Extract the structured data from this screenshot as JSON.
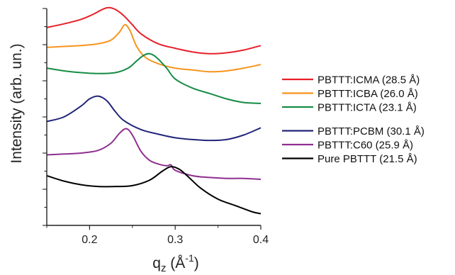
{
  "chart_data": {
    "type": "line",
    "title": "",
    "xlabel_main": "q",
    "xlabel_sub": "z",
    "xlabel_unit_open": " (Å",
    "xlabel_unit_sup": "-1",
    "xlabel_unit_close": ")",
    "ylabel": "Intensity (arb. un.)",
    "xlim": [
      0.15,
      0.4
    ],
    "ylim": [
      0,
      12
    ],
    "xticks": [
      {
        "value": 0.2,
        "label": "0.2"
      },
      {
        "value": 0.3,
        "label": "0.3"
      },
      {
        "value": 0.4,
        "label": "0.4"
      }
    ],
    "yticks_labeled": false,
    "grid": false,
    "legend_position": "right",
    "series": [
      {
        "name": "PBTTT:ICMA (28.5 Å)",
        "color": "#e8202a",
        "x": [
          0.15,
          0.17,
          0.19,
          0.205,
          0.215,
          0.222,
          0.23,
          0.24,
          0.25,
          0.26,
          0.28,
          0.3,
          0.32,
          0.34,
          0.36,
          0.38,
          0.4
        ],
        "y": [
          10.95,
          11.15,
          11.4,
          11.7,
          11.95,
          12.05,
          11.95,
          11.6,
          11.1,
          10.6,
          10.05,
          9.8,
          9.6,
          9.5,
          9.55,
          9.7,
          9.95
        ]
      },
      {
        "name": "PBTTT:ICBA (26.0 Å)",
        "color": "#f7941d",
        "x": [
          0.15,
          0.17,
          0.19,
          0.21,
          0.225,
          0.235,
          0.241,
          0.247,
          0.255,
          0.265,
          0.28,
          0.3,
          0.32,
          0.34,
          0.36,
          0.38,
          0.4
        ],
        "y": [
          9.85,
          9.9,
          9.95,
          10.05,
          10.25,
          10.7,
          11.1,
          10.8,
          9.9,
          9.3,
          8.95,
          8.7,
          8.6,
          8.5,
          8.55,
          8.7,
          8.9
        ]
      },
      {
        "name": "PBTTT:ICTA (23.1 Å)",
        "color": "#168c44",
        "x": [
          0.15,
          0.17,
          0.19,
          0.21,
          0.23,
          0.245,
          0.255,
          0.263,
          0.27,
          0.278,
          0.29,
          0.3,
          0.32,
          0.34,
          0.36,
          0.38,
          0.4
        ],
        "y": [
          8.7,
          8.55,
          8.45,
          8.4,
          8.45,
          8.7,
          9.1,
          9.4,
          9.5,
          9.3,
          8.7,
          8.1,
          7.6,
          7.3,
          7.0,
          6.8,
          6.75
        ]
      },
      {
        "name": "PBTTT:PCBM (30.1 Å)",
        "color": "#23257a",
        "x": [
          0.15,
          0.17,
          0.19,
          0.2,
          0.21,
          0.22,
          0.23,
          0.24,
          0.26,
          0.28,
          0.3,
          0.32,
          0.34,
          0.36,
          0.38,
          0.4
        ],
        "y": [
          5.75,
          6.0,
          6.6,
          7.0,
          7.15,
          6.9,
          6.3,
          5.8,
          5.3,
          5.05,
          4.85,
          4.75,
          4.7,
          4.75,
          5.0,
          5.4
        ]
      },
      {
        "name": "PBTTT:C60 (25.9 Å)",
        "color": "#8e2f8f",
        "x": [
          0.15,
          0.17,
          0.19,
          0.21,
          0.225,
          0.235,
          0.243,
          0.25,
          0.26,
          0.27,
          0.28,
          0.29,
          0.295,
          0.3,
          0.32,
          0.34,
          0.36,
          0.38,
          0.4
        ],
        "y": [
          3.9,
          3.95,
          4.0,
          4.15,
          4.55,
          5.1,
          5.35,
          5.0,
          4.1,
          3.6,
          3.4,
          3.3,
          3.35,
          3.05,
          2.75,
          2.65,
          2.6,
          2.6,
          2.55
        ]
      },
      {
        "name": "Pure PBTTT (21.5 Å)",
        "color": "#000000",
        "x": [
          0.15,
          0.17,
          0.19,
          0.21,
          0.23,
          0.25,
          0.27,
          0.285,
          0.295,
          0.305,
          0.315,
          0.33,
          0.35,
          0.37,
          0.39,
          0.4
        ],
        "y": [
          2.75,
          2.45,
          2.25,
          2.15,
          2.15,
          2.2,
          2.5,
          3.0,
          3.25,
          3.1,
          2.7,
          2.05,
          1.45,
          1.1,
          0.75,
          0.65
        ]
      }
    ],
    "legend_gap_after_index": 2
  }
}
